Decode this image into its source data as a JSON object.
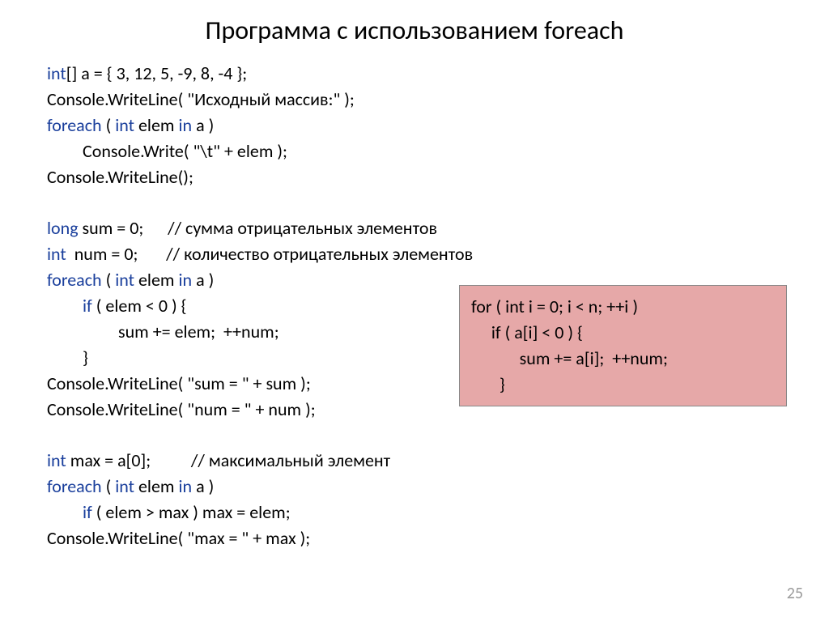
{
  "title": "Программа с использованием foreach",
  "code": {
    "l01a": "int",
    "l01b": "[] a = { 3, 12, 5, -9, 8, -4 };",
    "l02": "Console.WriteLine( \"Исходный массив:\" );",
    "l03a": "foreach ",
    "l03b": "( ",
    "l03c": "int ",
    "l03d": "elem ",
    "l03e": "in ",
    "l03f": "a )",
    "l04": "Console.Write( \"\\t\" + elem );",
    "l05": "Console.WriteLine();",
    "l07a": "long ",
    "l07b": "sum = 0;      // сумма отрицательных элементов",
    "l08a": "int  ",
    "l08b": "num = 0;       // количество отрицательных элементов",
    "l09a": "foreach ",
    "l09b": "( ",
    "l09c": "int ",
    "l09d": "elem ",
    "l09e": "in ",
    "l09f": "a )",
    "l10a": "if ",
    "l10b": "( elem < 0 ) {",
    "l11": "sum += elem;  ++num;",
    "l12": "}",
    "l13": "Console.WriteLine( \"sum = \" + sum );",
    "l14": "Console.WriteLine( \"num = \" + num );",
    "l16a": "int ",
    "l16b": "max = a[0];          // максимальный элемент",
    "l17a": "foreach ",
    "l17b": "( ",
    "l17c": "int ",
    "l17d": "elem ",
    "l17e": "in ",
    "l17f": "a )",
    "l18a": "if ",
    "l18b": "( elem > max ) max = elem;",
    "l19": "Console.WriteLine( \"max = \" + max );"
  },
  "callout": {
    "l1": "for ( int i = 0; i < n; ++i )",
    "l2": "     if ( a[i] < 0 ) {",
    "l3": "            sum += a[i];  ++num;",
    "l4": "       }"
  },
  "page_number": "25",
  "colors": {
    "keyword": "#1a3f9c",
    "text": "#000000",
    "callout_bg": "#e6a8a8",
    "callout_border": "#888888",
    "pagenum": "#9a9a9a",
    "background": "#ffffff"
  }
}
